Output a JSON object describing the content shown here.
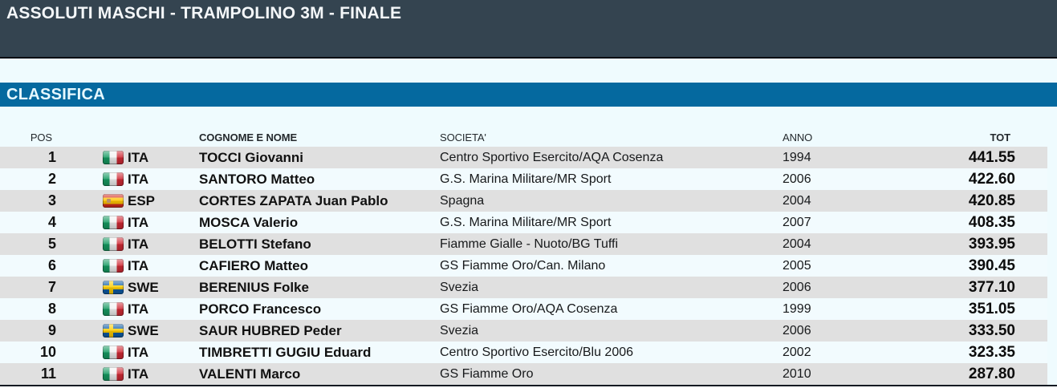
{
  "header": {
    "title": "ASSOLUTI MASCHI - TRAMPOLINO 3M - FINALE"
  },
  "section": {
    "title": "CLASSIFICA"
  },
  "table": {
    "columns": {
      "pos": "POS",
      "name": "COGNOME E NOME",
      "club": "SOCIETA'",
      "year": "ANNO",
      "total": "TOT"
    },
    "rows": [
      {
        "pos": "1",
        "flag": "ita",
        "nation": "ITA",
        "name": "TOCCI Giovanni",
        "club": "Centro Sportivo Esercito/AQA Cosenza",
        "year": "1994",
        "total": "441.55"
      },
      {
        "pos": "2",
        "flag": "ita",
        "nation": "ITA",
        "name": "SANTORO Matteo",
        "club": "G.S. Marina Militare/MR Sport",
        "year": "2006",
        "total": "422.60"
      },
      {
        "pos": "3",
        "flag": "esp",
        "nation": "ESP",
        "name": "CORTES ZAPATA Juan Pablo",
        "club": "Spagna",
        "year": "2004",
        "total": "420.85"
      },
      {
        "pos": "4",
        "flag": "ita",
        "nation": "ITA",
        "name": "MOSCA Valerio",
        "club": "G.S. Marina Militare/MR Sport",
        "year": "2007",
        "total": "408.35"
      },
      {
        "pos": "5",
        "flag": "ita",
        "nation": "ITA",
        "name": "BELOTTI Stefano",
        "club": "Fiamme Gialle - Nuoto/BG Tuffi",
        "year": "2004",
        "total": "393.95"
      },
      {
        "pos": "6",
        "flag": "ita",
        "nation": "ITA",
        "name": "CAFIERO Matteo",
        "club": "GS Fiamme Oro/Can. Milano",
        "year": "2005",
        "total": "390.45"
      },
      {
        "pos": "7",
        "flag": "swe",
        "nation": "SWE",
        "name": "BERENIUS Folke",
        "club": "Svezia",
        "year": "2006",
        "total": "377.10"
      },
      {
        "pos": "8",
        "flag": "ita",
        "nation": "ITA",
        "name": "PORCO Francesco",
        "club": "GS Fiamme Oro/AQA Cosenza",
        "year": "1999",
        "total": "351.05"
      },
      {
        "pos": "9",
        "flag": "swe",
        "nation": "SWE",
        "name": "SAUR HUBRED Peder",
        "club": "Svezia",
        "year": "2006",
        "total": "333.50"
      },
      {
        "pos": "10",
        "flag": "ita",
        "nation": "ITA",
        "name": "TIMBRETTI GUGIU Eduard",
        "club": "Centro Sportivo Esercito/Blu 2006",
        "year": "2002",
        "total": "323.35"
      },
      {
        "pos": "11",
        "flag": "ita",
        "nation": "ITA",
        "name": "VALENTI Marco",
        "club": "GS Fiamme Oro",
        "year": "2010",
        "total": "287.80"
      }
    ]
  },
  "colors": {
    "banner_bg": "#344450",
    "section_bar_bg": "#05699f",
    "row_stripe_gray": "#e0e0e0",
    "row_stripe_azure": "#f2fbfe",
    "page_azure": "#effbfe"
  }
}
